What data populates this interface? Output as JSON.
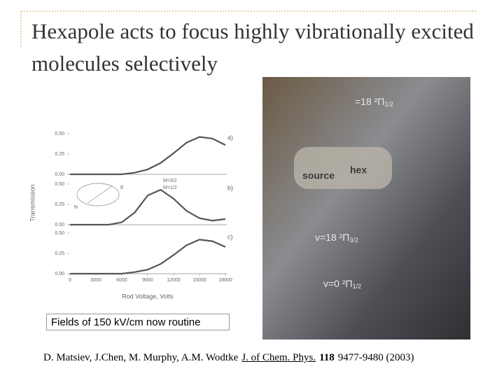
{
  "title": "Hexapole acts to focus highly vibrationally excited molecules selectively",
  "chart_data": {
    "type": "line",
    "y_label": "Transmission",
    "x_label": "Rod Voltage, Volts",
    "xlim": [
      0,
      18000
    ],
    "xticks": [
      0,
      3000,
      6000,
      9000,
      12000,
      15000,
      18000
    ],
    "inset_labels": [
      "E",
      "N",
      "M=3/2",
      "M=1/2"
    ],
    "panels": [
      {
        "label": "a)",
        "ylim": [
          0,
          0.5
        ],
        "yticks": [
          {
            "value": 0,
            "label": "0.00"
          },
          {
            "value": 0.25,
            "label": "0.25"
          },
          {
            "value": 0.5,
            "label": "0.50"
          }
        ],
        "x": [
          0,
          1500,
          3000,
          4500,
          6000,
          7500,
          9000,
          10500,
          12000,
          13500,
          15000,
          16500,
          18000
        ],
        "series": [
          {
            "color": "#555555",
            "values": [
              0,
              0,
              0,
              0,
              0,
              0.02,
              0.06,
              0.14,
              0.26,
              0.39,
              0.46,
              0.44,
              0.36
            ]
          }
        ]
      },
      {
        "label": "b)",
        "ylim": [
          0,
          0.5
        ],
        "yticks": [
          {
            "value": 0,
            "label": "0.00"
          },
          {
            "value": 0.25,
            "label": "0.25"
          },
          {
            "value": 0.5,
            "label": "0.50"
          }
        ],
        "x": [
          0,
          1500,
          3000,
          4500,
          6000,
          7500,
          9000,
          10500,
          12000,
          13500,
          15000,
          16500,
          18000
        ],
        "series": [
          {
            "color": "#555555",
            "values": [
              0,
              0,
              0,
              0,
              0.03,
              0.15,
              0.36,
              0.43,
              0.32,
              0.17,
              0.08,
              0.05,
              0.07
            ]
          }
        ]
      },
      {
        "label": "c)",
        "ylim": [
          0,
          0.5
        ],
        "yticks": [
          {
            "value": 0,
            "label": "0.00"
          },
          {
            "value": 0.25,
            "label": "0.25"
          },
          {
            "value": 0.5,
            "label": "0.50"
          }
        ],
        "x": [
          0,
          1500,
          3000,
          4500,
          6000,
          7500,
          9000,
          10500,
          12000,
          13500,
          15000,
          16500,
          18000
        ],
        "series": [
          {
            "color": "#555555",
            "values": [
              0,
              0,
              0,
              0,
              0,
              0.02,
              0.05,
              0.12,
              0.23,
              0.35,
              0.42,
              0.4,
              0.33
            ]
          }
        ]
      }
    ]
  },
  "photo": {
    "annotations": [
      {
        "main": "=18 ²Π",
        "sub": "1/2"
      },
      {
        "main": "v=18 ²Π",
        "sub": "3/2"
      },
      {
        "main": "v=0 ²Π",
        "sub": "1/2"
      }
    ],
    "labels": [
      "source",
      "hex"
    ]
  },
  "caption": "Fields of 150 kV/cm now routine",
  "citation": {
    "authors": "D. Matsiev, J.Chen, M. Murphy, A.M. Wodtke",
    "journal": "J. of Chem. Phys.",
    "volume": "118",
    "pages": "9477-9480 (2003)"
  }
}
